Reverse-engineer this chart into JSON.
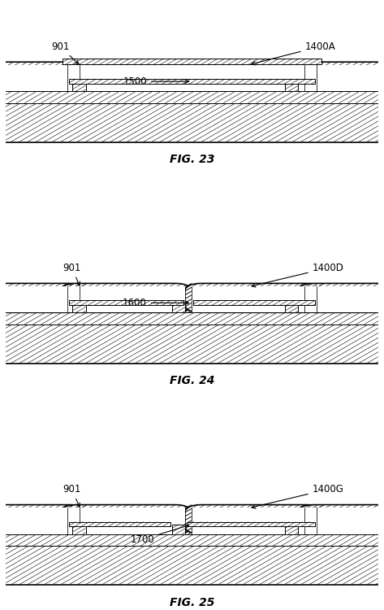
{
  "bg_color": "#ffffff",
  "line_color": "#000000",
  "fig_label_fontsize": 10,
  "annotation_fontsize": 8.5,
  "panels": [
    {
      "figname": "FIG. 23",
      "variant": "A",
      "label_post": "901",
      "label_dome": "1400A",
      "label_mem": "1500"
    },
    {
      "figname": "FIG. 24",
      "variant": "D",
      "label_post": "901",
      "label_dome": "1400D",
      "label_mem": "1600"
    },
    {
      "figname": "FIG. 25",
      "variant": "G",
      "label_post": "901",
      "label_dome": "1400G",
      "label_mem": "1700"
    }
  ]
}
